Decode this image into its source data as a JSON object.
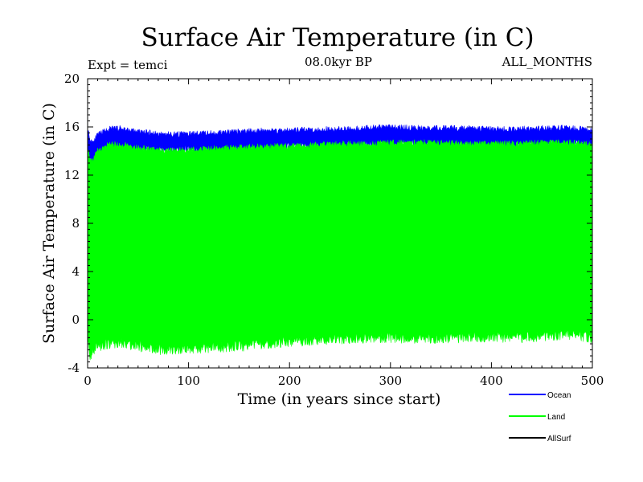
{
  "chart_data": {
    "type": "line",
    "title": "Surface Air Temperature (in C)",
    "subtitle_left": "Expt = temci",
    "subtitle_center": "08.0kyr BP",
    "subtitle_right": "ALL_MONTHS",
    "xlabel": "Time (in years since start)",
    "ylabel": "Surface Air Temperature (in C)",
    "xlim": [
      0,
      500
    ],
    "ylim": [
      -4,
      20
    ],
    "x_ticks": [
      0,
      100,
      200,
      300,
      400,
      500
    ],
    "y_ticks": [
      -4,
      0,
      4,
      8,
      12,
      16,
      20
    ],
    "grid": false,
    "legend_position": "bottom-right",
    "series": [
      {
        "name": "Ocean",
        "color": "#0000ff",
        "x": [
          0,
          2,
          5,
          10,
          20,
          30,
          50,
          75,
          100,
          125,
          150,
          175,
          200,
          225,
          250,
          275,
          300,
          325,
          350,
          375,
          400,
          425,
          450,
          475,
          500
        ],
        "low": [
          14.5,
          13.5,
          13.0,
          13.5,
          14.0,
          14.2,
          14.1,
          14.0,
          14.1,
          14.0,
          14.1,
          14.2,
          14.3,
          14.4,
          14.4,
          14.5,
          14.5,
          14.5,
          14.5,
          14.5,
          14.4,
          14.4,
          14.5,
          14.5,
          14.4
        ],
        "high": [
          16.0,
          15.0,
          14.8,
          15.3,
          15.8,
          15.9,
          15.6,
          15.4,
          15.4,
          15.5,
          15.6,
          15.7,
          15.7,
          15.8,
          15.8,
          15.9,
          16.0,
          15.9,
          15.9,
          15.9,
          15.8,
          15.8,
          15.9,
          15.9,
          15.8
        ]
      },
      {
        "name": "Land",
        "color": "#00ff00",
        "x": [
          0,
          2,
          5,
          10,
          20,
          30,
          50,
          75,
          100,
          125,
          150,
          175,
          200,
          225,
          250,
          275,
          300,
          325,
          350,
          375,
          400,
          425,
          450,
          475,
          500
        ],
        "low": [
          -1.0,
          -3.2,
          -2.5,
          -2.2,
          -2.0,
          -1.9,
          -2.2,
          -2.5,
          -2.4,
          -2.3,
          -2.2,
          -2.0,
          -1.8,
          -1.7,
          -1.6,
          -1.5,
          -1.5,
          -1.6,
          -1.5,
          -1.5,
          -1.4,
          -1.5,
          -1.4,
          -1.2,
          -1.5
        ],
        "high": [
          14.5,
          13.2,
          13.2,
          14.0,
          14.5,
          14.6,
          14.3,
          14.0,
          14.1,
          14.2,
          14.3,
          14.4,
          14.4,
          14.5,
          14.6,
          14.6,
          14.7,
          14.7,
          14.7,
          14.6,
          14.6,
          14.6,
          14.7,
          14.7,
          14.6
        ]
      },
      {
        "name": "AllSurf",
        "color": "#000000",
        "x": [],
        "low": [],
        "high": []
      }
    ]
  }
}
